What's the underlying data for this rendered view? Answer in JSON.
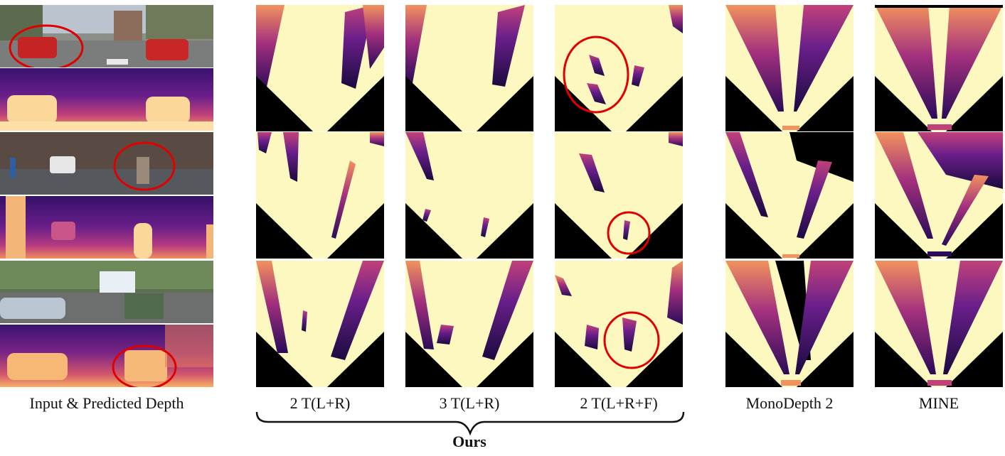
{
  "figure": {
    "left_column_caption": "Input & Predicted Depth",
    "method_captions": [
      "2 T(L+R)",
      "3 T(L+R)",
      "2 T(L+R+F)",
      "MonoDepth 2",
      "MINE"
    ],
    "group_label": "Ours",
    "left_rows": [
      {
        "scene": "street-with-red-car",
        "depth": "predicted-depth-1"
      },
      {
        "scene": "street-with-cyclist",
        "depth": "predicted-depth-2"
      },
      {
        "scene": "street-with-silver-car",
        "depth": "predicted-depth-3"
      }
    ],
    "colors": {
      "ray_fill": "#fcf8c0",
      "occluded": "#000000",
      "magma_dark": "#2a0b59",
      "magma_mid": "#a3307e",
      "magma_orange": "#f2925d",
      "highlight_circle": "#e00000"
    }
  }
}
